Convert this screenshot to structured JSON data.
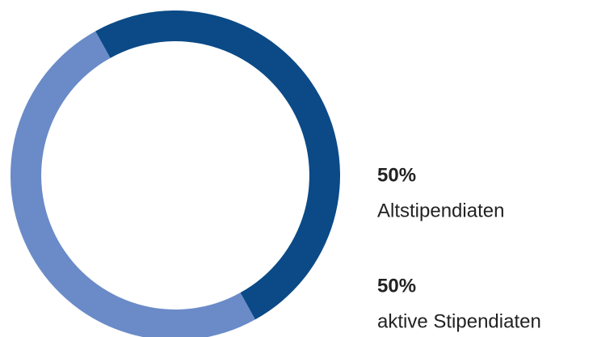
{
  "chart_data": {
    "type": "pie",
    "categories": [
      "Altstipendiaten",
      "aktive Stipendiaten"
    ],
    "values": [
      50,
      50
    ],
    "value_labels": [
      "50%",
      "50%"
    ],
    "colors": [
      "#0b4a87",
      "#6a8bc8"
    ]
  }
}
